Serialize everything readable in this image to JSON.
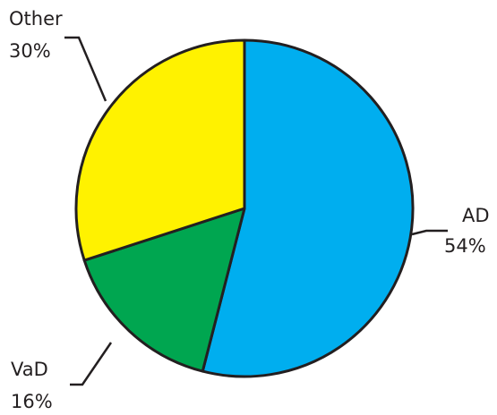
{
  "chart_data": {
    "type": "pie",
    "slices": [
      {
        "label": "AD",
        "value": 54,
        "value_label": "54%",
        "color": "#00aeef"
      },
      {
        "label": "VaD",
        "value": 16,
        "value_label": "16%",
        "color": "#00a650"
      },
      {
        "label": "Other",
        "value": 30,
        "value_label": "30%",
        "color": "#fff200"
      }
    ],
    "start": "top",
    "direction": "clockwise",
    "outline_color": "#231f20",
    "legend": "none"
  }
}
